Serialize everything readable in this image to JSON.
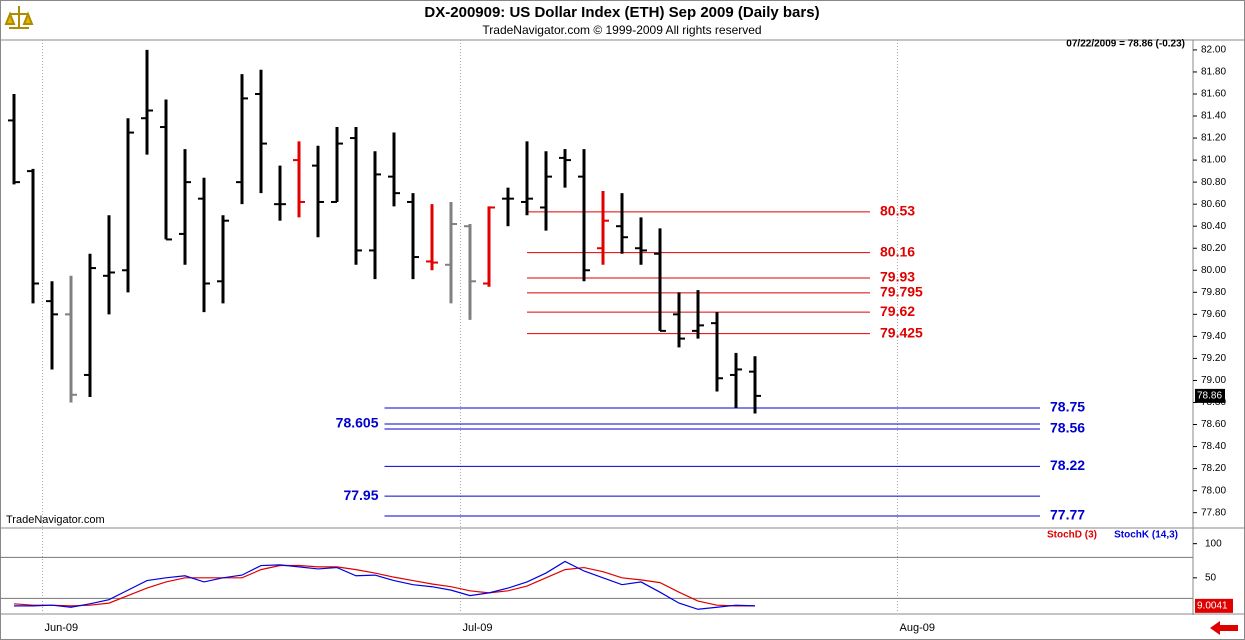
{
  "chart_data": [
    {
      "type": "ohlc",
      "title": "DX-200909:  US Dollar Index (ETH) Sep 2009  (Daily bars)",
      "subtitle": "TradeNavigator.com © 1999-2009 All rights reserved",
      "watermark": "TradeNavigator.com",
      "info": "07/22/2009 = 78.86 (-0.23)",
      "categories": [
        null,
        null,
        "Jun-09",
        null,
        null,
        null,
        null,
        null,
        null,
        null,
        null,
        null,
        null,
        null,
        null,
        null,
        null,
        null,
        null,
        null,
        null,
        null,
        null,
        null,
        "Jul-09",
        null,
        null,
        null,
        null,
        null,
        null,
        null,
        null,
        null,
        null,
        null,
        null,
        null,
        null,
        null,
        null,
        null,
        null,
        null,
        null,
        null,
        null,
        "Aug-09"
      ],
      "open": [
        81.36,
        80.9,
        79.72,
        79.6,
        79.05,
        79.95,
        80.0,
        81.38,
        81.3,
        80.33,
        80.65,
        79.9,
        80.8,
        81.6,
        80.6,
        81.0,
        80.95,
        80.62,
        81.2,
        80.18,
        80.85,
        80.62,
        80.08,
        80.05,
        80.4,
        79.88,
        80.65,
        80.62,
        80.57,
        81.02,
        80.85,
        80.2,
        80.4,
        80.2,
        80.15,
        79.6,
        79.45,
        79.52,
        79.05,
        79.08,
        null,
        null,
        null,
        null,
        null,
        null,
        null,
        null
      ],
      "high": [
        81.6,
        80.92,
        79.9,
        79.95,
        80.15,
        80.5,
        81.38,
        82.0,
        81.55,
        81.1,
        80.84,
        80.5,
        81.78,
        81.82,
        80.95,
        81.17,
        81.13,
        81.3,
        81.3,
        81.08,
        81.25,
        80.7,
        80.6,
        80.62,
        80.42,
        80.58,
        80.75,
        81.17,
        81.08,
        81.1,
        81.1,
        80.72,
        80.7,
        80.48,
        80.38,
        79.8,
        79.82,
        79.62,
        79.25,
        79.22,
        null,
        null,
        null,
        null,
        null,
        null,
        null,
        null
      ],
      "low": [
        80.78,
        79.7,
        79.1,
        78.8,
        78.85,
        79.6,
        79.8,
        81.05,
        80.28,
        80.05,
        79.62,
        79.7,
        80.6,
        80.7,
        80.45,
        80.48,
        80.3,
        80.62,
        80.05,
        79.92,
        80.58,
        79.92,
        80.0,
        79.7,
        79.55,
        79.85,
        80.4,
        80.5,
        80.36,
        80.75,
        79.9,
        80.05,
        80.15,
        80.05,
        79.45,
        79.3,
        79.38,
        78.9,
        78.75,
        78.7,
        null,
        null,
        null,
        null,
        null,
        null,
        null,
        null
      ],
      "close": [
        80.8,
        79.88,
        79.6,
        78.87,
        80.02,
        79.98,
        81.25,
        81.45,
        80.28,
        80.8,
        79.88,
        80.45,
        81.56,
        81.15,
        80.6,
        80.62,
        80.62,
        81.15,
        80.18,
        80.87,
        80.7,
        80.12,
        80.07,
        80.42,
        79.9,
        80.57,
        80.65,
        80.65,
        80.85,
        81.0,
        80.0,
        80.45,
        80.3,
        80.18,
        79.45,
        79.38,
        79.5,
        79.02,
        79.1,
        78.86,
        null,
        null,
        null,
        null,
        null,
        null,
        null,
        null
      ],
      "colors": [
        "#000000",
        "#000000",
        "#000000",
        "#808080",
        "#000000",
        "#000000",
        "#000000",
        "#000000",
        "#000000",
        "#000000",
        "#000000",
        "#000000",
        "#000000",
        "#000000",
        "#000000",
        "#e00000",
        "#000000",
        "#000000",
        "#000000",
        "#000000",
        "#000000",
        "#000000",
        "#e00000",
        "#808080",
        "#808080",
        "#e00000",
        "#000000",
        "#000000",
        "#000000",
        "#000000",
        "#000000",
        "#e00000",
        "#000000",
        "#000000",
        "#000000",
        "#000000",
        "#000000",
        "#000000",
        "#000000",
        "#000000",
        null,
        null,
        null,
        null,
        null,
        null,
        null,
        null
      ],
      "last_price": 78.86,
      "ylim": [
        77.67,
        82.09
      ],
      "yticks": [
        {
          "value": 82,
          "label": "82.00"
        },
        {
          "value": 81.8,
          "label": "81.80"
        },
        {
          "value": 81.6,
          "label": "81.60"
        },
        {
          "value": 81.4,
          "label": "81.40"
        },
        {
          "value": 81.2,
          "label": "81.20"
        },
        {
          "value": 81,
          "label": "81.00"
        },
        {
          "value": 80.8,
          "label": "80.80"
        },
        {
          "value": 80.6,
          "label": "80.60"
        },
        {
          "value": 80.4,
          "label": "80.40"
        },
        {
          "value": 80.2,
          "label": "80.20"
        },
        {
          "value": 80,
          "label": "80.00"
        },
        {
          "value": 79.8,
          "label": "79.80"
        },
        {
          "value": 79.6,
          "label": "79.60"
        },
        {
          "value": 79.4,
          "label": "79.40"
        },
        {
          "value": 79.2,
          "label": "79.20"
        },
        {
          "value": 79,
          "label": "79.00"
        },
        {
          "value": 78.8,
          "label": "78.80"
        },
        {
          "value": 78.6,
          "label": "78.60"
        },
        {
          "value": 78.4,
          "label": "78.40"
        },
        {
          "value": 78.2,
          "label": "78.20"
        },
        {
          "value": 78,
          "label": "78.00"
        },
        {
          "value": 77.8,
          "label": "77.80"
        }
      ],
      "levels": [
        {
          "value": 80.53,
          "color": "#e00000",
          "label_side": "right"
        },
        {
          "value": 80.16,
          "color": "#e00000",
          "label_side": "right"
        },
        {
          "value": 79.93,
          "color": "#e00000",
          "label_side": "right"
        },
        {
          "value": 79.795,
          "color": "#e00000",
          "label_side": "right"
        },
        {
          "value": 79.62,
          "color": "#e00000",
          "label_side": "right"
        },
        {
          "value": 79.425,
          "color": "#e00000",
          "label_side": "right"
        },
        {
          "value": 78.75,
          "color": "#0000d0",
          "label_side": "right"
        },
        {
          "value": 78.605,
          "color": "#0000d0",
          "label_side": "left"
        },
        {
          "value": 78.56,
          "color": "#0000d0",
          "label_side": "right"
        },
        {
          "value": 78.22,
          "color": "#0000d0",
          "label_side": "right"
        },
        {
          "value": 77.95,
          "color": "#0000d0",
          "label_side": "left"
        },
        {
          "value": 77.77,
          "color": "#0000d0",
          "label_side": "right"
        }
      ]
    },
    {
      "type": "line",
      "series": [
        {
          "name": "StochD (3)",
          "color": "#e00000",
          "values": [
            12,
            10,
            10,
            9,
            10,
            13,
            24,
            35,
            44,
            50,
            50,
            50,
            50,
            62,
            68,
            68,
            66,
            66,
            62,
            57,
            51,
            46,
            41,
            37,
            31,
            28,
            31,
            38,
            50,
            62,
            65,
            59,
            50,
            47,
            43,
            29,
            16,
            10,
            9,
            9,
            null,
            null,
            null,
            null,
            null,
            null,
            null,
            null
          ]
        },
        {
          "name": "StochK (14,3)",
          "color": "#0000e0",
          "values": [
            9,
            9,
            10,
            7,
            12,
            18,
            32,
            46,
            50,
            53,
            44,
            50,
            54,
            68,
            69,
            66,
            63,
            65,
            53,
            54,
            46,
            40,
            37,
            32,
            24,
            28,
            35,
            44,
            57,
            74,
            60,
            50,
            40,
            44,
            29,
            13,
            4,
            7,
            10,
            9,
            null,
            null,
            null,
            null,
            null,
            null,
            null,
            null
          ]
        }
      ],
      "last_value_label": "9.0041",
      "ylim": [
        0,
        120
      ],
      "yticks": [
        100,
        50
      ],
      "levels": [
        80,
        20
      ]
    }
  ]
}
